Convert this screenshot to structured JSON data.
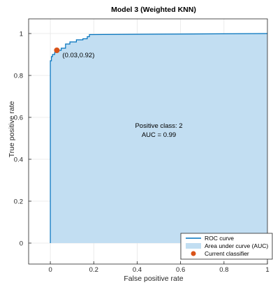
{
  "chart_data": {
    "type": "area",
    "title": "Model 3 (Weighted KNN)",
    "xlabel": "False positive rate",
    "ylabel": "True positive rate",
    "xlim": [
      -0.1,
      1.0
    ],
    "ylim": [
      -0.1,
      1.07
    ],
    "xticks": [
      "0",
      "0.2",
      "0.4",
      "0.6",
      "0.8",
      "1"
    ],
    "yticks": [
      "0",
      "0.2",
      "0.4",
      "0.6",
      "0.8",
      "1"
    ],
    "grid": true,
    "legend_position": "bottom-right",
    "annotation_lines": [
      "Positive class: 2",
      "AUC = 0.99"
    ],
    "point_label": "(0.03,0.92)",
    "series": [
      {
        "name": "ROC curve",
        "x": [
          0,
          0,
          0.005,
          0.005,
          0.01,
          0.01,
          0.02,
          0.02,
          0.03,
          0.03,
          0.05,
          0.05,
          0.07,
          0.07,
          0.09,
          0.09,
          0.12,
          0.12,
          0.15,
          0.15,
          0.17,
          0.17,
          0.18,
          0.18,
          0.5,
          1.0
        ],
        "y": [
          0,
          0.87,
          0.87,
          0.89,
          0.89,
          0.9,
          0.9,
          0.91,
          0.91,
          0.92,
          0.92,
          0.93,
          0.93,
          0.95,
          0.95,
          0.96,
          0.96,
          0.97,
          0.97,
          0.975,
          0.975,
          0.985,
          0.985,
          0.995,
          0.997,
          1.0
        ]
      },
      {
        "name": "Area under curve (AUC)"
      },
      {
        "name": "Current classifier",
        "x": [
          0.03
        ],
        "y": [
          0.92
        ]
      }
    ],
    "colors": {
      "curve": "#0072bd",
      "area": "#c2def2",
      "point": "#d95319",
      "grid": "#e6e6e6"
    }
  }
}
